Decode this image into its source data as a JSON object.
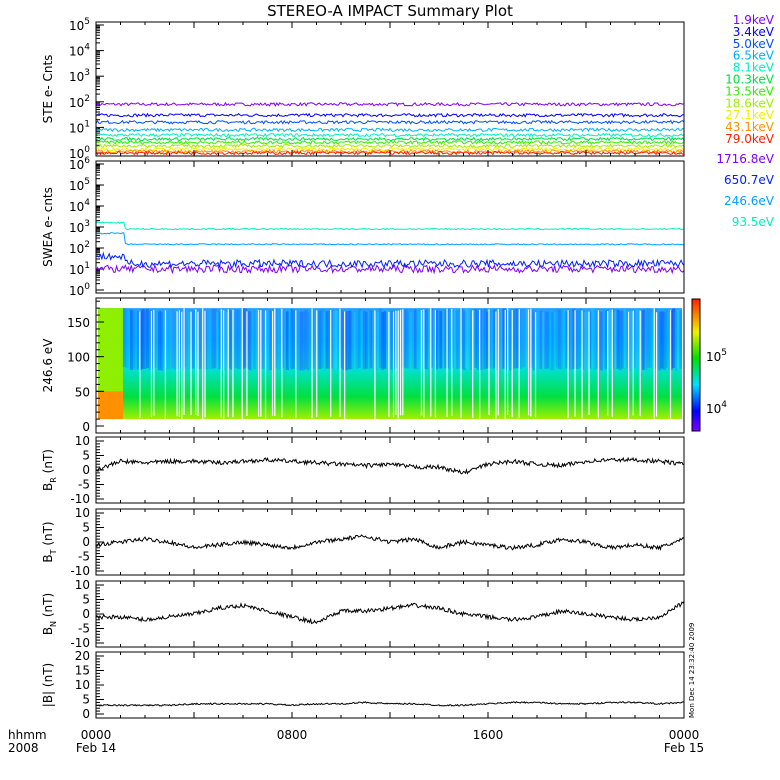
{
  "title": "STEREO-A IMPACT Summary Plot",
  "timestamp": "Mon Dec 14 23:32:40 2009",
  "time_axis": {
    "unit_label": "hhmm",
    "year_label": "2008",
    "ticks": [
      {
        "hour": 0,
        "time": "0000",
        "date": "Feb 14"
      },
      {
        "hour": 8,
        "time": "0800",
        "date": ""
      },
      {
        "hour": 16,
        "time": "1600",
        "date": ""
      },
      {
        "hour": 24,
        "time": "0000",
        "date": "Feb 15"
      }
    ]
  },
  "chart_data": [
    {
      "type": "line",
      "name": "ste",
      "ylabel": "STE e- Cnts",
      "yscale": "log",
      "ylim_exp": [
        0,
        5
      ],
      "series": [
        {
          "name": "1.9keV",
          "color": "#8000ff",
          "level": 80
        },
        {
          "name": "3.4keV",
          "color": "#0000ff",
          "level": 30
        },
        {
          "name": "5.0keV",
          "color": "#0050ff",
          "level": 16
        },
        {
          "name": "6.5keV",
          "color": "#00b0ff",
          "level": 8
        },
        {
          "name": "8.1keV",
          "color": "#00f0c0",
          "level": 5
        },
        {
          "name": "10.3keV",
          "color": "#00e040",
          "level": 3.5
        },
        {
          "name": "13.5keV",
          "color": "#30f000",
          "level": 2.6
        },
        {
          "name": "18.6keV",
          "color": "#a0f000",
          "level": 1.9
        },
        {
          "name": "27.1keV",
          "color": "#f0f000",
          "level": 1.4
        },
        {
          "name": "43.1keV",
          "color": "#ff9000",
          "level": 1.15
        },
        {
          "name": "79.0keV",
          "color": "#ff2000",
          "level": 1.0
        }
      ]
    },
    {
      "type": "line",
      "name": "swea",
      "ylabel": "SWEA e- cnts",
      "yscale": "log",
      "ylim_exp": [
        0,
        6
      ],
      "series": [
        {
          "name": "1716.8eV",
          "color": "#8000ff",
          "level": 10,
          "early_level": 10
        },
        {
          "name": "650.7eV",
          "color": "#0020ff",
          "level": 18,
          "early_level": 40
        },
        {
          "name": "246.6eV",
          "color": "#00a0ff",
          "level": 150,
          "early_level": 500
        },
        {
          "name": "93.5eV",
          "color": "#00f0c0",
          "level": 800,
          "early_level": 1600
        }
      ]
    },
    {
      "type": "heatmap",
      "name": "pitch-angle",
      "ylabel": "246.6 eV",
      "ylim": [
        0,
        180
      ],
      "yticks": [
        0,
        50,
        100,
        150
      ],
      "pitch_range": [
        10,
        170
      ],
      "colorbar": {
        "scale": "log",
        "ticks": [
          "10^4",
          "10^5"
        ]
      }
    },
    {
      "type": "line",
      "name": "br",
      "ylabel": "B",
      "sub": "R",
      "unit": " (nT)",
      "ylim": [
        -10,
        10
      ],
      "yticks": [
        10,
        5,
        0,
        -5,
        -10
      ],
      "hours": [
        0,
        1,
        2,
        3,
        4,
        5,
        6,
        7,
        8,
        9,
        10,
        11,
        12,
        13,
        14,
        15,
        16,
        17,
        18,
        19,
        20,
        21,
        22,
        23,
        24
      ],
      "values": [
        0,
        3,
        2.5,
        3,
        3,
        2.5,
        3,
        3.5,
        3,
        2.5,
        2,
        1.5,
        2,
        1,
        1,
        -1,
        2,
        3,
        2,
        1.5,
        3,
        3.5,
        3.5,
        3,
        2
      ]
    },
    {
      "type": "line",
      "name": "bt",
      "ylabel": "B",
      "sub": "T",
      "unit": " (nT)",
      "ylim": [
        -10,
        10
      ],
      "yticks": [
        10,
        5,
        0,
        -5,
        -10
      ],
      "hours": [
        0,
        1,
        2,
        3,
        4,
        5,
        6,
        7,
        8,
        9,
        10,
        11,
        12,
        13,
        14,
        15,
        16,
        17,
        18,
        19,
        20,
        21,
        22,
        23,
        24
      ],
      "values": [
        -1,
        0,
        1,
        0,
        -2,
        -1,
        0,
        -1,
        -2,
        0,
        1,
        2,
        0,
        1,
        -2,
        0,
        -1,
        -2,
        -1,
        1,
        0,
        -2,
        -1,
        -2,
        1
      ]
    },
    {
      "type": "line",
      "name": "bn",
      "ylabel": "B",
      "sub": "N",
      "unit": " (nT)",
      "ylim": [
        -10,
        10
      ],
      "yticks": [
        10,
        5,
        0,
        -5,
        -10
      ],
      "hours": [
        0,
        1,
        2,
        3,
        4,
        5,
        6,
        7,
        8,
        9,
        10,
        11,
        12,
        13,
        14,
        15,
        16,
        17,
        18,
        19,
        20,
        21,
        22,
        23,
        24
      ],
      "values": [
        -1,
        -1,
        -2,
        -1,
        0,
        2,
        3,
        1,
        -1,
        -3,
        1,
        1,
        2,
        3,
        2,
        0,
        -1,
        -2,
        -1,
        1,
        0,
        -1,
        -2,
        -1,
        4
      ]
    },
    {
      "type": "line",
      "name": "bmag",
      "ylabel": "|B|",
      "sub": "",
      "unit": " (nT)",
      "ylim": [
        0,
        20
      ],
      "yticks": [
        20,
        15,
        10,
        5,
        0
      ],
      "hours": [
        0,
        1,
        2,
        3,
        4,
        5,
        6,
        7,
        8,
        9,
        10,
        11,
        12,
        13,
        14,
        15,
        16,
        17,
        18,
        19,
        20,
        21,
        22,
        23,
        24
      ],
      "values": [
        3,
        3,
        3,
        3,
        3.5,
        3.5,
        3.5,
        3.5,
        3,
        3.5,
        3.5,
        4,
        3.5,
        3.5,
        3,
        3,
        3.5,
        4,
        4,
        3.5,
        3.5,
        4,
        4,
        3.5,
        4
      ]
    }
  ]
}
